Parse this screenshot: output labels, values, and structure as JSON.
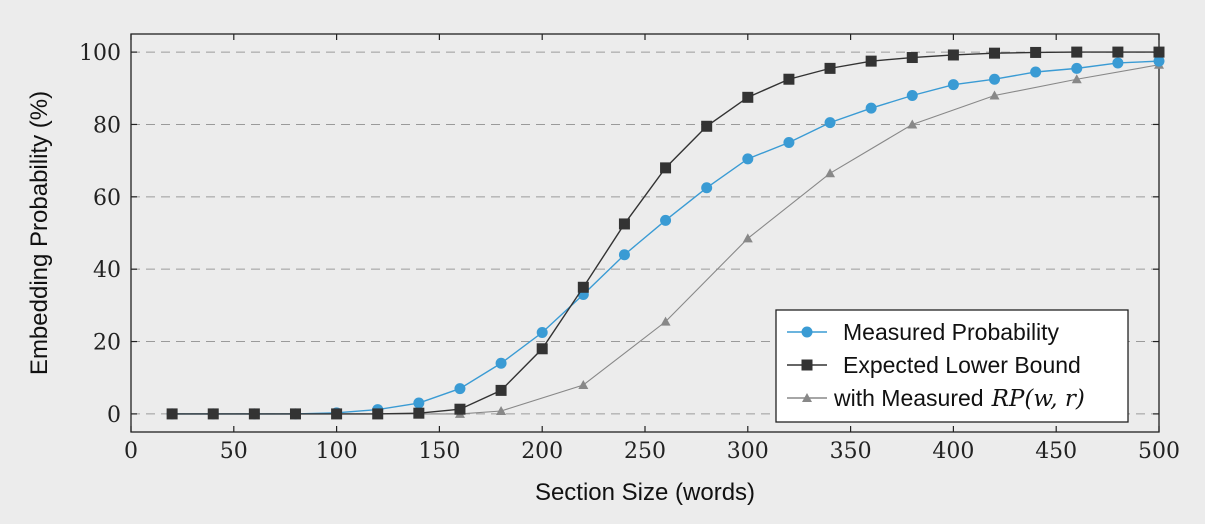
{
  "chart_data": {
    "type": "line",
    "title": "",
    "xlabel": "Section Size (words)",
    "ylabel": "Embedding Probability (%)",
    "xlim": [
      0,
      500
    ],
    "ylim": [
      -5,
      105
    ],
    "xticks": [
      0,
      50,
      100,
      150,
      200,
      250,
      300,
      350,
      400,
      450,
      500
    ],
    "yticks": [
      0,
      20,
      40,
      60,
      80,
      100
    ],
    "grid": "horizontal-dashed",
    "legend_position": "bottom-right",
    "series": [
      {
        "name": "Measured Probability",
        "color": "#3a9bd4",
        "marker": "circle",
        "x": [
          20,
          40,
          60,
          80,
          100,
          120,
          140,
          160,
          180,
          200,
          220,
          240,
          260,
          280,
          300,
          320,
          340,
          360,
          380,
          400,
          420,
          440,
          460,
          480,
          500
        ],
        "y": [
          0,
          0,
          0,
          0,
          0.3,
          1.2,
          3,
          7,
          14,
          22.5,
          33,
          44,
          53.5,
          62.5,
          70.5,
          75,
          80.5,
          84.5,
          88,
          91,
          92.5,
          94.5,
          95.5,
          97,
          97.5
        ]
      },
      {
        "name": "Expected Lower Bound",
        "color": "#333333",
        "marker": "square",
        "x": [
          20,
          40,
          60,
          80,
          100,
          120,
          140,
          160,
          180,
          200,
          220,
          240,
          260,
          280,
          300,
          320,
          340,
          360,
          380,
          400,
          420,
          440,
          460,
          480,
          500
        ],
        "y": [
          0,
          0,
          0,
          0,
          0,
          0,
          0.2,
          1.3,
          6.5,
          18,
          35,
          52.5,
          68,
          79.5,
          87.5,
          92.5,
          95.5,
          97.5,
          98.5,
          99.2,
          99.7,
          99.9,
          100,
          100,
          100
        ]
      },
      {
        "name": "with Measured",
        "name_math": "RP(w, r)",
        "color": "#888888",
        "marker": "triangle",
        "x": [
          20,
          40,
          60,
          80,
          100,
          120,
          140,
          160,
          180,
          220,
          260,
          300,
          340,
          380,
          420,
          460,
          500
        ],
        "y": [
          0,
          0,
          0,
          0,
          0,
          0,
          0,
          0,
          0.8,
          8,
          25.5,
          48.5,
          66.5,
          80,
          88,
          92.5,
          96.5
        ]
      }
    ]
  }
}
